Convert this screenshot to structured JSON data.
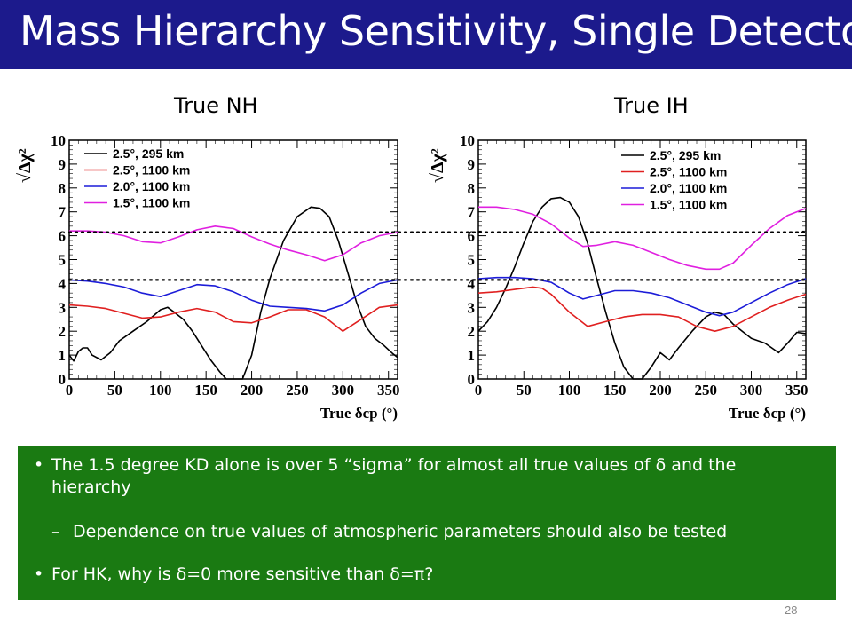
{
  "slide": {
    "title": "Mass Hierarchy Sensitivity, Single Detector",
    "page_number": "28",
    "title_bar_color": "#1c1a8c",
    "bullet_box_color": "#1a7a12"
  },
  "panels": [
    {
      "heading": "True NH"
    },
    {
      "heading": "True IH"
    }
  ],
  "bullets": [
    {
      "marker": "•",
      "text": "The 1.5 degree KD alone is over 5 “sigma” for almost all true values of δ and the hierarchy"
    },
    {
      "marker": "–",
      "text": "Dependence on true values of atmospheric parameters should also be tested"
    },
    {
      "marker": "•",
      "text": "For HK, why is δ=0 more sensitive than δ=π?"
    }
  ],
  "chart_data": [
    {
      "type": "line",
      "title": "True NH",
      "ylabel": "√Δχ²",
      "xlabel": "True δcp (°)",
      "xlim": [
        0,
        360
      ],
      "ylim": [
        0,
        10
      ],
      "xticks": [
        0,
        50,
        100,
        150,
        200,
        250,
        300,
        350
      ],
      "yticks": [
        0,
        1,
        2,
        3,
        4,
        5,
        6,
        7,
        8,
        9,
        10
      ],
      "legend_position": "top-left",
      "reference_lines": [
        6.15,
        4.15
      ],
      "series": [
        {
          "name": "2.5°, 295 km",
          "color": "#000000",
          "x": [
            0,
            5,
            10,
            15,
            20,
            25,
            35,
            45,
            55,
            70,
            85,
            100,
            108,
            115,
            125,
            135,
            145,
            155,
            165,
            172,
            178,
            185,
            190,
            200,
            210,
            220,
            235,
            250,
            265,
            275,
            285,
            295,
            305,
            315,
            325,
            335,
            345,
            355,
            360
          ],
          "y": [
            1.0,
            0.75,
            1.15,
            1.3,
            1.3,
            1.0,
            0.8,
            1.1,
            1.6,
            2.0,
            2.4,
            2.9,
            3.0,
            2.8,
            2.5,
            2.0,
            1.4,
            0.8,
            0.3,
            0.0,
            0.0,
            0.0,
            0.0,
            1.0,
            2.8,
            4.2,
            5.8,
            6.8,
            7.2,
            7.15,
            6.8,
            5.8,
            4.5,
            3.2,
            2.2,
            1.7,
            1.4,
            1.05,
            0.9
          ]
        },
        {
          "name": "2.5°, 1100 km",
          "color": "#e02020",
          "x": [
            0,
            20,
            40,
            60,
            80,
            100,
            120,
            140,
            160,
            180,
            200,
            220,
            240,
            260,
            280,
            300,
            320,
            340,
            360
          ],
          "y": [
            3.1,
            3.05,
            2.95,
            2.75,
            2.55,
            2.6,
            2.8,
            2.95,
            2.8,
            2.4,
            2.35,
            2.6,
            2.9,
            2.9,
            2.6,
            2.0,
            2.5,
            3.0,
            3.1
          ]
        },
        {
          "name": "2.0°, 1100 km",
          "color": "#1c1cd8",
          "x": [
            0,
            20,
            40,
            60,
            80,
            100,
            120,
            140,
            160,
            180,
            200,
            220,
            240,
            260,
            280,
            300,
            320,
            340,
            360
          ],
          "y": [
            4.15,
            4.1,
            4.0,
            3.85,
            3.6,
            3.45,
            3.7,
            3.95,
            3.9,
            3.65,
            3.3,
            3.05,
            3.0,
            2.95,
            2.85,
            3.1,
            3.6,
            4.0,
            4.15
          ]
        },
        {
          "name": "1.5°, 1100 km",
          "color": "#e020e0",
          "x": [
            0,
            20,
            40,
            60,
            80,
            100,
            120,
            140,
            160,
            180,
            200,
            220,
            240,
            260,
            280,
            300,
            320,
            340,
            360
          ],
          "y": [
            6.2,
            6.2,
            6.15,
            6.0,
            5.75,
            5.7,
            5.95,
            6.25,
            6.4,
            6.3,
            5.95,
            5.65,
            5.4,
            5.2,
            4.95,
            5.2,
            5.7,
            6.0,
            6.15
          ]
        }
      ]
    },
    {
      "type": "line",
      "title": "True IH",
      "ylabel": "√Δχ²",
      "xlabel": "True δcp (°)",
      "xlim": [
        0,
        360
      ],
      "ylim": [
        0,
        10
      ],
      "xticks": [
        0,
        50,
        100,
        150,
        200,
        250,
        300,
        350
      ],
      "yticks": [
        0,
        1,
        2,
        3,
        4,
        5,
        6,
        7,
        8,
        9,
        10
      ],
      "legend_position": "top-right",
      "reference_lines": [
        6.15,
        4.15
      ],
      "series": [
        {
          "name": "2.5°, 295 km",
          "color": "#000000",
          "x": [
            0,
            10,
            20,
            30,
            40,
            50,
            60,
            70,
            80,
            90,
            100,
            110,
            120,
            130,
            140,
            150,
            160,
            170,
            180,
            190,
            200,
            210,
            220,
            235,
            250,
            260,
            270,
            280,
            290,
            300,
            315,
            330,
            340,
            350,
            360
          ],
          "y": [
            2.0,
            2.4,
            3.0,
            3.8,
            4.7,
            5.7,
            6.6,
            7.2,
            7.55,
            7.6,
            7.4,
            6.8,
            5.7,
            4.2,
            2.8,
            1.5,
            0.5,
            0.0,
            0.0,
            0.5,
            1.1,
            0.8,
            1.3,
            2.0,
            2.6,
            2.8,
            2.7,
            2.3,
            2.0,
            1.7,
            1.5,
            1.1,
            1.5,
            1.95,
            1.9
          ]
        },
        {
          "name": "2.5°, 1100 km",
          "color": "#e02020",
          "x": [
            0,
            20,
            40,
            60,
            70,
            80,
            100,
            120,
            140,
            160,
            180,
            200,
            220,
            240,
            260,
            280,
            300,
            320,
            340,
            360
          ],
          "y": [
            3.6,
            3.65,
            3.75,
            3.85,
            3.8,
            3.55,
            2.8,
            2.2,
            2.4,
            2.6,
            2.7,
            2.7,
            2.6,
            2.2,
            2.0,
            2.2,
            2.6,
            3.0,
            3.3,
            3.55
          ]
        },
        {
          "name": "2.0°, 1100 km",
          "color": "#1c1cd8",
          "x": [
            0,
            20,
            40,
            60,
            80,
            100,
            115,
            130,
            150,
            170,
            190,
            210,
            230,
            250,
            265,
            280,
            300,
            320,
            340,
            360
          ],
          "y": [
            4.2,
            4.25,
            4.25,
            4.2,
            4.05,
            3.6,
            3.35,
            3.5,
            3.7,
            3.7,
            3.6,
            3.4,
            3.1,
            2.8,
            2.65,
            2.8,
            3.2,
            3.6,
            3.95,
            4.2
          ]
        },
        {
          "name": "1.5°, 1100 km",
          "color": "#e020e0",
          "x": [
            0,
            20,
            40,
            60,
            80,
            100,
            115,
            130,
            150,
            170,
            190,
            210,
            230,
            250,
            265,
            280,
            300,
            320,
            340,
            360
          ],
          "y": [
            7.2,
            7.2,
            7.1,
            6.9,
            6.5,
            5.9,
            5.55,
            5.6,
            5.75,
            5.6,
            5.3,
            5.0,
            4.75,
            4.6,
            4.6,
            4.85,
            5.6,
            6.3,
            6.85,
            7.15
          ]
        }
      ]
    }
  ]
}
